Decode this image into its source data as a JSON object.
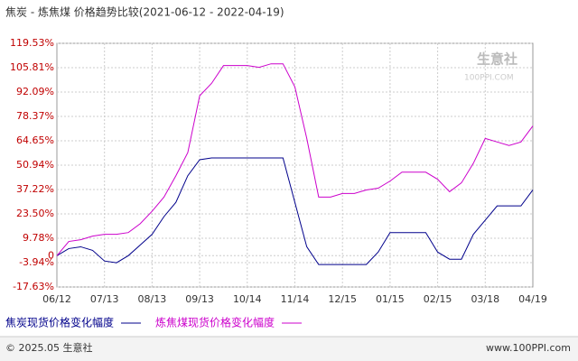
{
  "chart_data": {
    "type": "line",
    "title": "焦炭 - 炼焦煤 价格趋势比较(2021-06-12 - 2022-04-19)",
    "watermark": "生意社",
    "watermark_sub": "100PPI.COM",
    "categories": [
      "06/12",
      null,
      null,
      null,
      "07/13",
      null,
      null,
      null,
      "08/13",
      null,
      null,
      null,
      "09/13",
      null,
      null,
      null,
      "10/14",
      null,
      null,
      null,
      "11/14",
      null,
      null,
      null,
      "12/15",
      null,
      null,
      null,
      "01/15",
      null,
      null,
      null,
      "02/15",
      null,
      null,
      null,
      "03/18",
      null,
      null,
      null,
      "04/19"
    ],
    "series": [
      {
        "name": "焦炭现货价格变化幅度",
        "color": "#00008b",
        "values": [
          0,
          4,
          5,
          3,
          -3,
          -4,
          0,
          6,
          12,
          22,
          30,
          45,
          54,
          55,
          55,
          55,
          55,
          55,
          55,
          55,
          30,
          5,
          -5,
          -5,
          -5,
          -5,
          -5,
          2,
          13,
          13,
          13,
          13,
          2,
          -2,
          -2,
          12,
          20,
          28,
          28,
          28,
          37
        ]
      },
      {
        "name": "炼焦煤现货价格变化幅度",
        "color": "#cc00cc",
        "values": [
          0,
          8,
          9,
          11,
          12,
          12,
          13,
          18,
          25,
          33,
          45,
          58,
          90,
          97,
          107,
          107,
          107,
          106,
          108,
          108,
          95,
          66,
          33,
          33,
          35,
          35,
          37,
          38,
          42,
          47,
          47,
          47,
          43,
          36,
          41,
          52,
          66,
          64,
          62,
          64,
          73
        ]
      }
    ],
    "ylim": [
      -17.63,
      119.53
    ],
    "yticks": [
      {
        "value": 119.53,
        "label": "119.53%"
      },
      {
        "value": 105.81,
        "label": "105.81%"
      },
      {
        "value": 92.09,
        "label": "92.09%"
      },
      {
        "value": 78.37,
        "label": "78.37%"
      },
      {
        "value": 64.65,
        "label": "64.65%"
      },
      {
        "value": 50.94,
        "label": "50.94%"
      },
      {
        "value": 37.22,
        "label": "37.22%"
      },
      {
        "value": 23.5,
        "label": "23.50%"
      },
      {
        "value": 9.78,
        "label": "9.78%"
      },
      0,
      {
        "value": -3.94,
        "label": "-3.94%"
      },
      {
        "value": -17.63,
        "label": "-17.63%"
      }
    ],
    "grid": true,
    "footer_left": "© 2025.05 生意社",
    "footer_right": "www.100PPI.com"
  }
}
